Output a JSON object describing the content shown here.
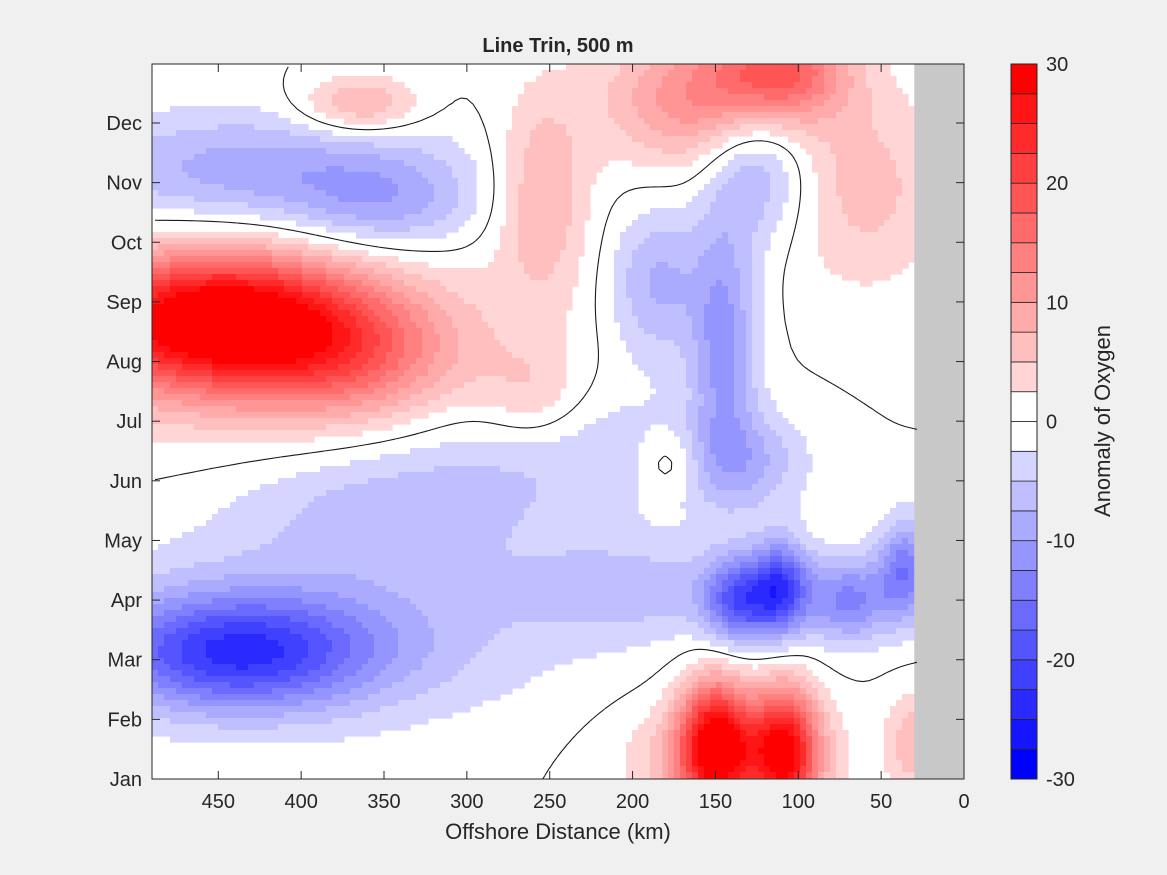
{
  "chart_data": {
    "type": "heatmap",
    "title": "Line Trin, 500 m",
    "xlabel": "Offshore Distance (km)",
    "ylabel": "",
    "x_ticks": [
      450,
      400,
      350,
      300,
      250,
      200,
      150,
      100,
      50,
      0
    ],
    "xlim": [
      490,
      0
    ],
    "x_reversed": true,
    "y_ticks": [
      "Jan",
      "Feb",
      "Mar",
      "Apr",
      "May",
      "Jun",
      "Jul",
      "Aug",
      "Sep",
      "Oct",
      "Nov",
      "Dec"
    ],
    "colorbar": {
      "label": "Anomaly of Oxygen",
      "range": [
        -30,
        30
      ],
      "ticks": [
        30,
        20,
        10,
        0,
        -10,
        -20,
        -30
      ],
      "levels": [
        -30,
        -27.5,
        -25,
        -22.5,
        -20,
        -17.5,
        -15,
        -12.5,
        -10,
        -7.5,
        -5,
        -2.5,
        0,
        2.5,
        5,
        7.5,
        10,
        12.5,
        15,
        17.5,
        20,
        22.5,
        25,
        27.5,
        30
      ]
    },
    "no_data_region": {
      "x_range": [
        30,
        0
      ],
      "color": "#c8c8c8"
    },
    "contour_line_level": 0,
    "features": [
      {
        "x": 450,
        "month": 7.7,
        "value": 26,
        "sx": 60,
        "sy": 0.75
      },
      {
        "x": 430,
        "month": 7.4,
        "value": 10,
        "sx": 90,
        "sy": 1.1
      },
      {
        "x": 370,
        "month": 7.0,
        "value": 8,
        "sx": 45,
        "sy": 0.7
      },
      {
        "x": 440,
        "month": 2.1,
        "value": -17,
        "sx": 55,
        "sy": 0.65
      },
      {
        "x": 400,
        "month": 2.4,
        "value": -8,
        "sx": 100,
        "sy": 1.0
      },
      {
        "x": 430,
        "month": 10.2,
        "value": -9,
        "sx": 80,
        "sy": 0.7
      },
      {
        "x": 350,
        "month": 9.6,
        "value": -7,
        "sx": 40,
        "sy": 0.6
      },
      {
        "x": 365,
        "month": 11.3,
        "value": 9,
        "sx": 25,
        "sy": 0.35
      },
      {
        "x": 150,
        "month": 0.6,
        "value": 26,
        "sx": 15,
        "sy": 0.75
      },
      {
        "x": 108,
        "month": 0.5,
        "value": 24,
        "sx": 14,
        "sy": 0.75
      },
      {
        "x": 140,
        "month": 0.3,
        "value": 10,
        "sx": 40,
        "sy": 0.7
      },
      {
        "x": 135,
        "month": 3.0,
        "value": -17,
        "sx": 15,
        "sy": 0.5
      },
      {
        "x": 110,
        "month": 3.2,
        "value": -18,
        "sx": 12,
        "sy": 0.55
      },
      {
        "x": 70,
        "month": 3.0,
        "value": -13,
        "sx": 18,
        "sy": 0.5
      },
      {
        "x": 35,
        "month": 3.5,
        "value": -14,
        "sx": 12,
        "sy": 0.6
      },
      {
        "x": 200,
        "month": 3.2,
        "value": -6,
        "sx": 50,
        "sy": 0.6
      },
      {
        "x": 145,
        "month": 7.3,
        "value": -11,
        "sx": 14,
        "sy": 1.4
      },
      {
        "x": 125,
        "month": 10.3,
        "value": -9,
        "sx": 22,
        "sy": 0.9
      },
      {
        "x": 160,
        "month": 11.4,
        "value": 12,
        "sx": 40,
        "sy": 0.8
      },
      {
        "x": 110,
        "month": 11.9,
        "value": 16,
        "sx": 28,
        "sy": 0.6
      },
      {
        "x": 60,
        "month": 9.9,
        "value": 6,
        "sx": 35,
        "sy": 1.2
      },
      {
        "x": 255,
        "month": 9.8,
        "value": 8,
        "sx": 20,
        "sy": 1.2
      },
      {
        "x": 260,
        "month": 6.4,
        "value": 5,
        "sx": 22,
        "sy": 0.6
      },
      {
        "x": 345,
        "month": 4.6,
        "value": -6,
        "sx": 70,
        "sy": 0.8
      },
      {
        "x": 240,
        "month": 5.6,
        "value": -4,
        "sx": 60,
        "sy": 0.8
      },
      {
        "x": 185,
        "month": 8.3,
        "value": -8,
        "sx": 20,
        "sy": 0.9
      },
      {
        "x": 130,
        "month": 5.3,
        "value": -7,
        "sx": 25,
        "sy": 0.6
      },
      {
        "x": 178,
        "month": 5.3,
        "value": 4,
        "sx": 12,
        "sy": 0.35
      },
      {
        "x": 30,
        "month": 0.6,
        "value": 7,
        "sx": 12,
        "sy": 0.6
      }
    ]
  }
}
